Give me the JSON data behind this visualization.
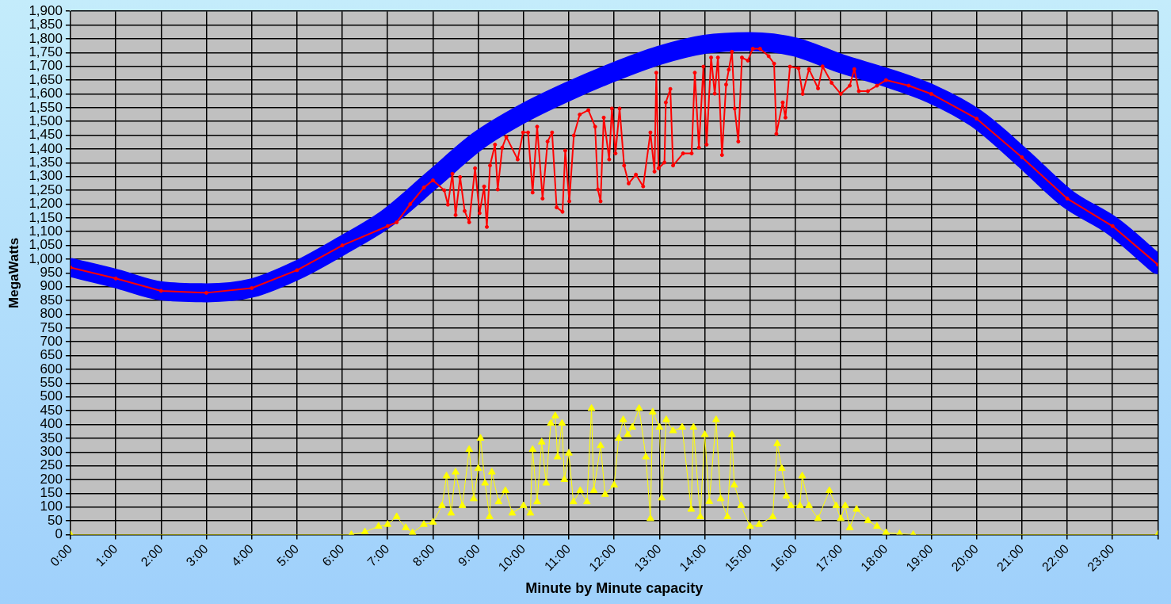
{
  "chart_data": {
    "type": "line",
    "xlabel": "Minute by Minute capacity",
    "ylabel": "MegaWatts",
    "grid": true,
    "legend": false,
    "line_style": "solid",
    "xlim": [
      0,
      24
    ],
    "xticks": [
      {
        "value": 0,
        "label": "0:00"
      },
      {
        "value": 1,
        "label": "1:00"
      },
      {
        "value": 2,
        "label": "2:00"
      },
      {
        "value": 3,
        "label": "3:00"
      },
      {
        "value": 4,
        "label": "4:00"
      },
      {
        "value": 5,
        "label": "5:00"
      },
      {
        "value": 6,
        "label": "6:00"
      },
      {
        "value": 7,
        "label": "7:00"
      },
      {
        "value": 8,
        "label": "8:00"
      },
      {
        "value": 9,
        "label": "9:00"
      },
      {
        "value": 10,
        "label": "10:00"
      },
      {
        "value": 11,
        "label": "11:00"
      },
      {
        "value": 12,
        "label": "12:00"
      },
      {
        "value": 13,
        "label": "13:00"
      },
      {
        "value": 14,
        "label": "14:00"
      },
      {
        "value": 15,
        "label": "15:00"
      },
      {
        "value": 16,
        "label": "16:00"
      },
      {
        "value": 17,
        "label": "17:00"
      },
      {
        "value": 18,
        "label": "18:00"
      },
      {
        "value": 19,
        "label": "19:00"
      },
      {
        "value": 20,
        "label": "20:00"
      },
      {
        "value": 21,
        "label": "21:00"
      },
      {
        "value": 22,
        "label": "22:00"
      },
      {
        "value": 23,
        "label": "23:00"
      },
      {
        "value": 24,
        "label": null
      }
    ],
    "ylim": [
      0,
      1900
    ],
    "yticks": [
      0,
      50,
      100,
      150,
      200,
      250,
      300,
      350,
      400,
      450,
      500,
      550,
      600,
      650,
      700,
      750,
      800,
      850,
      900,
      950,
      {
        "value": 1000,
        "label": "1,000"
      },
      {
        "value": 1050,
        "label": "1,050"
      },
      {
        "value": 1100,
        "label": "1,100"
      },
      {
        "value": 1150,
        "label": "1,150"
      },
      {
        "value": 1200,
        "label": "1,200"
      },
      {
        "value": 1250,
        "label": "1,250"
      },
      {
        "value": 1300,
        "label": "1,300"
      },
      {
        "value": 1350,
        "label": "1,350"
      },
      {
        "value": 1400,
        "label": "1,400"
      },
      {
        "value": 1450,
        "label": "1,450"
      },
      {
        "value": 1500,
        "label": "1,500"
      },
      {
        "value": 1550,
        "label": "1,550"
      },
      {
        "value": 1600,
        "label": "1,600"
      },
      {
        "value": 1650,
        "label": "1,650"
      },
      {
        "value": 1700,
        "label": "1,700"
      },
      {
        "value": 1750,
        "label": "1,750"
      },
      {
        "value": 1800,
        "label": "1,800"
      },
      {
        "value": 1850,
        "label": "1,850"
      },
      {
        "value": 1900,
        "label": "1,900"
      }
    ],
    "series": [
      {
        "color": "#0000ff",
        "marker": "none",
        "x": [
          0,
          1,
          2,
          3,
          4,
          5,
          6,
          7,
          8,
          9,
          10,
          11,
          12,
          13,
          14,
          15,
          16,
          17,
          18,
          19,
          20,
          21,
          22,
          23,
          24
        ],
        "values": [
          970,
          930,
          885,
          878,
          895,
          960,
          1050,
          1150,
          1290,
          1430,
          1530,
          1610,
          1680,
          1740,
          1780,
          1790,
          1770,
          1710,
          1660,
          1600,
          1510,
          1370,
          1220,
          1120,
          980
        ]
      },
      {
        "color": "#ff0000",
        "marker": "circle",
        "x": [
          0,
          1,
          2,
          3,
          4,
          5,
          6,
          7,
          7.2,
          7.5,
          7.8,
          8,
          8.25,
          8.33,
          8.43,
          8.5,
          8.6,
          8.7,
          8.8,
          8.93,
          9.03,
          9.13,
          9.19,
          9.26,
          9.37,
          9.43,
          9.53,
          9.62,
          9.87,
          9.99,
          10.1,
          10.2,
          10.3,
          10.42,
          10.53,
          10.63,
          10.73,
          10.86,
          10.92,
          11.01,
          11.11,
          11.24,
          11.43,
          11.58,
          11.64,
          11.7,
          11.77,
          11.89,
          11.95,
          12.03,
          12.12,
          12.22,
          12.32,
          12.48,
          12.64,
          12.8,
          12.89,
          12.93,
          12.98,
          13.11,
          13.14,
          13.24,
          13.3,
          13.52,
          13.71,
          13.78,
          13.87,
          13.97,
          14.04,
          14.14,
          14.22,
          14.29,
          14.38,
          14.47,
          14.53,
          14.6,
          14.66,
          14.74,
          14.82,
          14.95,
          15.06,
          15.22,
          15.41,
          15.53,
          15.58,
          15.72,
          15.78,
          15.88,
          16.07,
          16.16,
          16.3,
          16.5,
          16.6,
          16.8,
          17,
          17.2,
          17.3,
          17.4,
          17.6,
          17.8,
          18,
          18.5,
          19,
          20,
          21,
          22,
          23,
          24
        ],
        "values": [
          970,
          930,
          885,
          878,
          895,
          960,
          1050,
          1120,
          1134,
          1200,
          1260,
          1286,
          1250,
          1198,
          1310,
          1160,
          1298,
          1175,
          1134,
          1330,
          1167,
          1264,
          1117,
          1340,
          1416,
          1253,
          1405,
          1444,
          1362,
          1460,
          1460,
          1242,
          1481,
          1220,
          1427,
          1460,
          1188,
          1172,
          1394,
          1210,
          1449,
          1525,
          1541,
          1481,
          1253,
          1210,
          1514,
          1362,
          1547,
          1384,
          1547,
          1340,
          1275,
          1307,
          1264,
          1460,
          1318,
          1677,
          1330,
          1351,
          1569,
          1618,
          1340,
          1384,
          1384,
          1677,
          1405,
          1699,
          1416,
          1732,
          1601,
          1732,
          1378,
          1634,
          1688,
          1753,
          1547,
          1427,
          1732,
          1721,
          1764,
          1764,
          1737,
          1710,
          1455,
          1569,
          1514,
          1699,
          1693,
          1600,
          1690,
          1620,
          1700,
          1640,
          1600,
          1630,
          1690,
          1610,
          1610,
          1630,
          1650,
          1630,
          1600,
          1510,
          1370,
          1220,
          1120,
          980
        ]
      },
      {
        "color": "#ffff00",
        "marker": "triangle",
        "x": [
          0,
          6.2,
          6.5,
          6.8,
          7,
          7.2,
          7.4,
          7.55,
          7.8,
          8,
          8.2,
          8.3,
          8.4,
          8.5,
          8.65,
          8.8,
          8.9,
          9,
          9.05,
          9.15,
          9.25,
          9.3,
          9.45,
          9.6,
          9.75,
          10,
          10.15,
          10.2,
          10.3,
          10.4,
          10.5,
          10.6,
          10.7,
          10.75,
          10.85,
          10.9,
          11,
          11.1,
          11.25,
          11.4,
          11.5,
          11.55,
          11.7,
          11.8,
          12,
          12.1,
          12.2,
          12.3,
          12.4,
          12.55,
          12.7,
          12.8,
          12.85,
          13,
          13.05,
          13.15,
          13.3,
          13.5,
          13.7,
          13.75,
          13.9,
          14,
          14.1,
          14.25,
          14.35,
          14.5,
          14.6,
          14.65,
          14.8,
          15,
          15.2,
          15.5,
          15.6,
          15.7,
          15.8,
          15.9,
          16.1,
          16.15,
          16.3,
          16.5,
          16.75,
          16.9,
          17,
          17.1,
          17.2,
          17.35,
          17.6,
          17.8,
          18,
          18.3,
          18.6,
          24
        ],
        "values": [
          0,
          0,
          10,
          30,
          37,
          65,
          25,
          7,
          37,
          45,
          105,
          213,
          78,
          227,
          105,
          309,
          130,
          240,
          350,
          187,
          65,
          227,
          119,
          160,
          78,
          105,
          78,
          309,
          119,
          336,
          187,
          404,
          431,
          282,
          404,
          200,
          296,
          119,
          160,
          119,
          458,
          160,
          323,
          146,
          180,
          350,
          417,
          363,
          390,
          458,
          282,
          58,
          445,
          390,
          133,
          417,
          377,
          390,
          92,
          390,
          65,
          363,
          120,
          417,
          130,
          65,
          363,
          180,
          105,
          30,
          37,
          65,
          330,
          240,
          140,
          105,
          105,
          213,
          105,
          58,
          160,
          105,
          58,
          105,
          25,
          92,
          51,
          30,
          7,
          3,
          0,
          0
        ]
      }
    ]
  }
}
